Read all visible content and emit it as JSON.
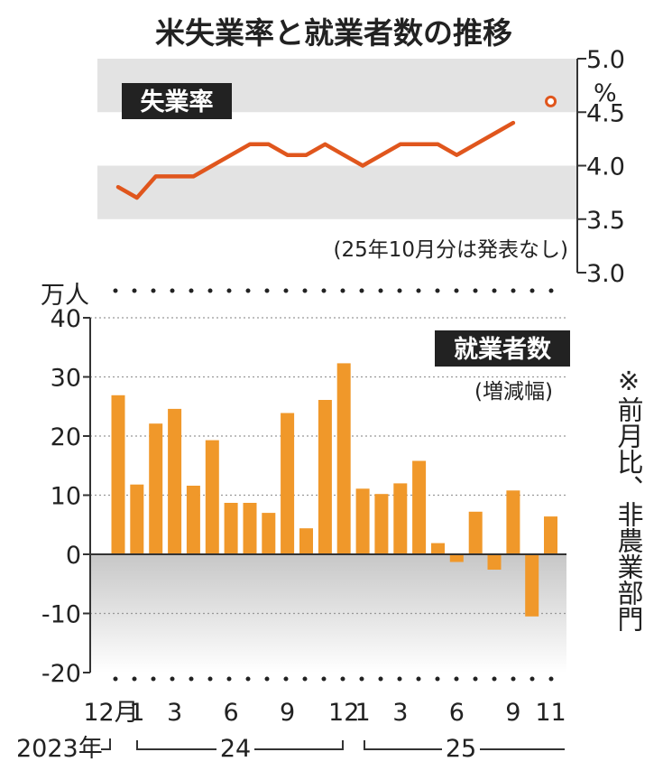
{
  "title": "米失業率と就業者数の推移",
  "colors": {
    "line": "#e0561d",
    "bar": "#f0982a",
    "band": "#e3e3e3",
    "tag_bg": "#222222",
    "axis": "#333333"
  },
  "chart_data": [
    {
      "type": "line",
      "label": "失業率",
      "unit": "%",
      "ylim": [
        3.0,
        5.0
      ],
      "yticks": [
        "5.0",
        "4.5",
        "4.0",
        "3.5",
        "3.0"
      ],
      "x": [
        "2023-12",
        "2024-01",
        "2024-02",
        "2024-03",
        "2024-04",
        "2024-05",
        "2024-06",
        "2024-07",
        "2024-08",
        "2024-09",
        "2024-10",
        "2024-11",
        "2024-12",
        "2025-01",
        "2025-02",
        "2025-03",
        "2025-04",
        "2025-05",
        "2025-06",
        "2025-07",
        "2025-08",
        "2025-09",
        "2025-10",
        "2025-11"
      ],
      "values": [
        3.8,
        3.7,
        3.9,
        3.9,
        3.9,
        4.0,
        4.1,
        4.2,
        4.2,
        4.1,
        4.1,
        4.2,
        4.1,
        4.0,
        4.1,
        4.2,
        4.2,
        4.2,
        4.1,
        4.2,
        4.3,
        4.4,
        null,
        4.6
      ],
      "note": "(25年10月分は発表なし)"
    },
    {
      "type": "bar",
      "label": "就業者数",
      "sublabel": "(増減幅)",
      "unit": "万人",
      "ylim": [
        -20,
        40
      ],
      "yticks": [
        "40",
        "30",
        "20",
        "10",
        "0",
        "-10",
        "-20"
      ],
      "x": [
        "2023-12",
        "2024-01",
        "2024-02",
        "2024-03",
        "2024-04",
        "2024-05",
        "2024-06",
        "2024-07",
        "2024-08",
        "2024-09",
        "2024-10",
        "2024-11",
        "2024-12",
        "2025-01",
        "2025-02",
        "2025-03",
        "2025-04",
        "2025-05",
        "2025-06",
        "2025-07",
        "2025-08",
        "2025-09",
        "2025-10",
        "2025-11"
      ],
      "values": [
        26.9,
        11.8,
        22.1,
        24.6,
        11.6,
        19.3,
        8.7,
        8.7,
        7.0,
        23.9,
        4.4,
        26.1,
        32.3,
        11.1,
        10.2,
        12.0,
        15.8,
        1.9,
        -1.3,
        7.2,
        -2.6,
        10.8,
        -10.5,
        6.4
      ],
      "xtick_labels": [
        "12月",
        "1",
        "3",
        "6",
        "9",
        "12",
        "1",
        "3",
        "6",
        "9",
        "11"
      ],
      "year_labels": [
        "2023年",
        "24",
        "25"
      ],
      "side_note": "※前月比、非農業部門"
    }
  ]
}
